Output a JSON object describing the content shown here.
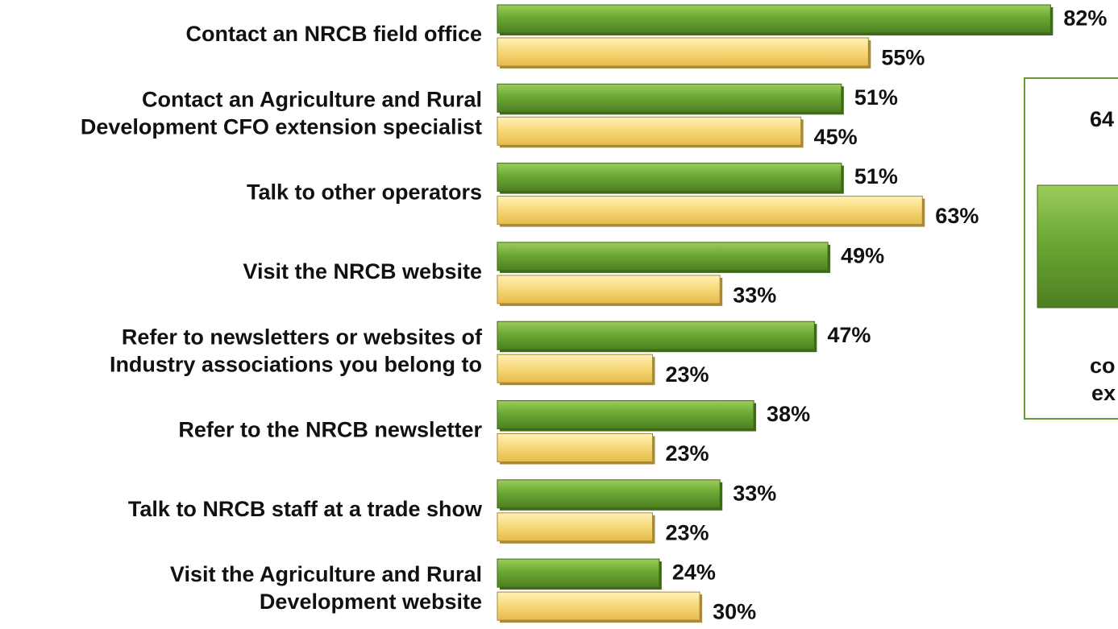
{
  "chart_data": {
    "type": "bar",
    "orientation": "horizontal",
    "categories": [
      [
        "Contact an NRCB field office"
      ],
      [
        "Contact an Agriculture and Rural",
        "Development CFO extension specialist"
      ],
      [
        "Talk to other operators"
      ],
      [
        "Visit the NRCB website"
      ],
      [
        "Refer to newsletters or websites of",
        "Industry associations you belong to"
      ],
      [
        "Refer to the NRCB newsletter"
      ],
      [
        "Talk to NRCB staff at a trade show"
      ],
      [
        "Visit the Agriculture and Rural",
        "Development website"
      ]
    ],
    "series": [
      {
        "color": "#5f9a2c",
        "values": [
          82,
          51,
          51,
          49,
          47,
          38,
          33,
          24
        ],
        "value_labels": [
          "82%",
          "51%",
          "51%",
          "49%",
          "47%",
          "38%",
          "33%",
          "24%"
        ]
      },
      {
        "color": "#f5d77a",
        "values": [
          55,
          45,
          63,
          33,
          23,
          23,
          23,
          30
        ],
        "value_labels": [
          "55%",
          "45%",
          "63%",
          "33%",
          "23%",
          "23%",
          "23%",
          "30%"
        ]
      }
    ],
    "annotations": [
      "64",
      "co",
      "ex"
    ]
  }
}
